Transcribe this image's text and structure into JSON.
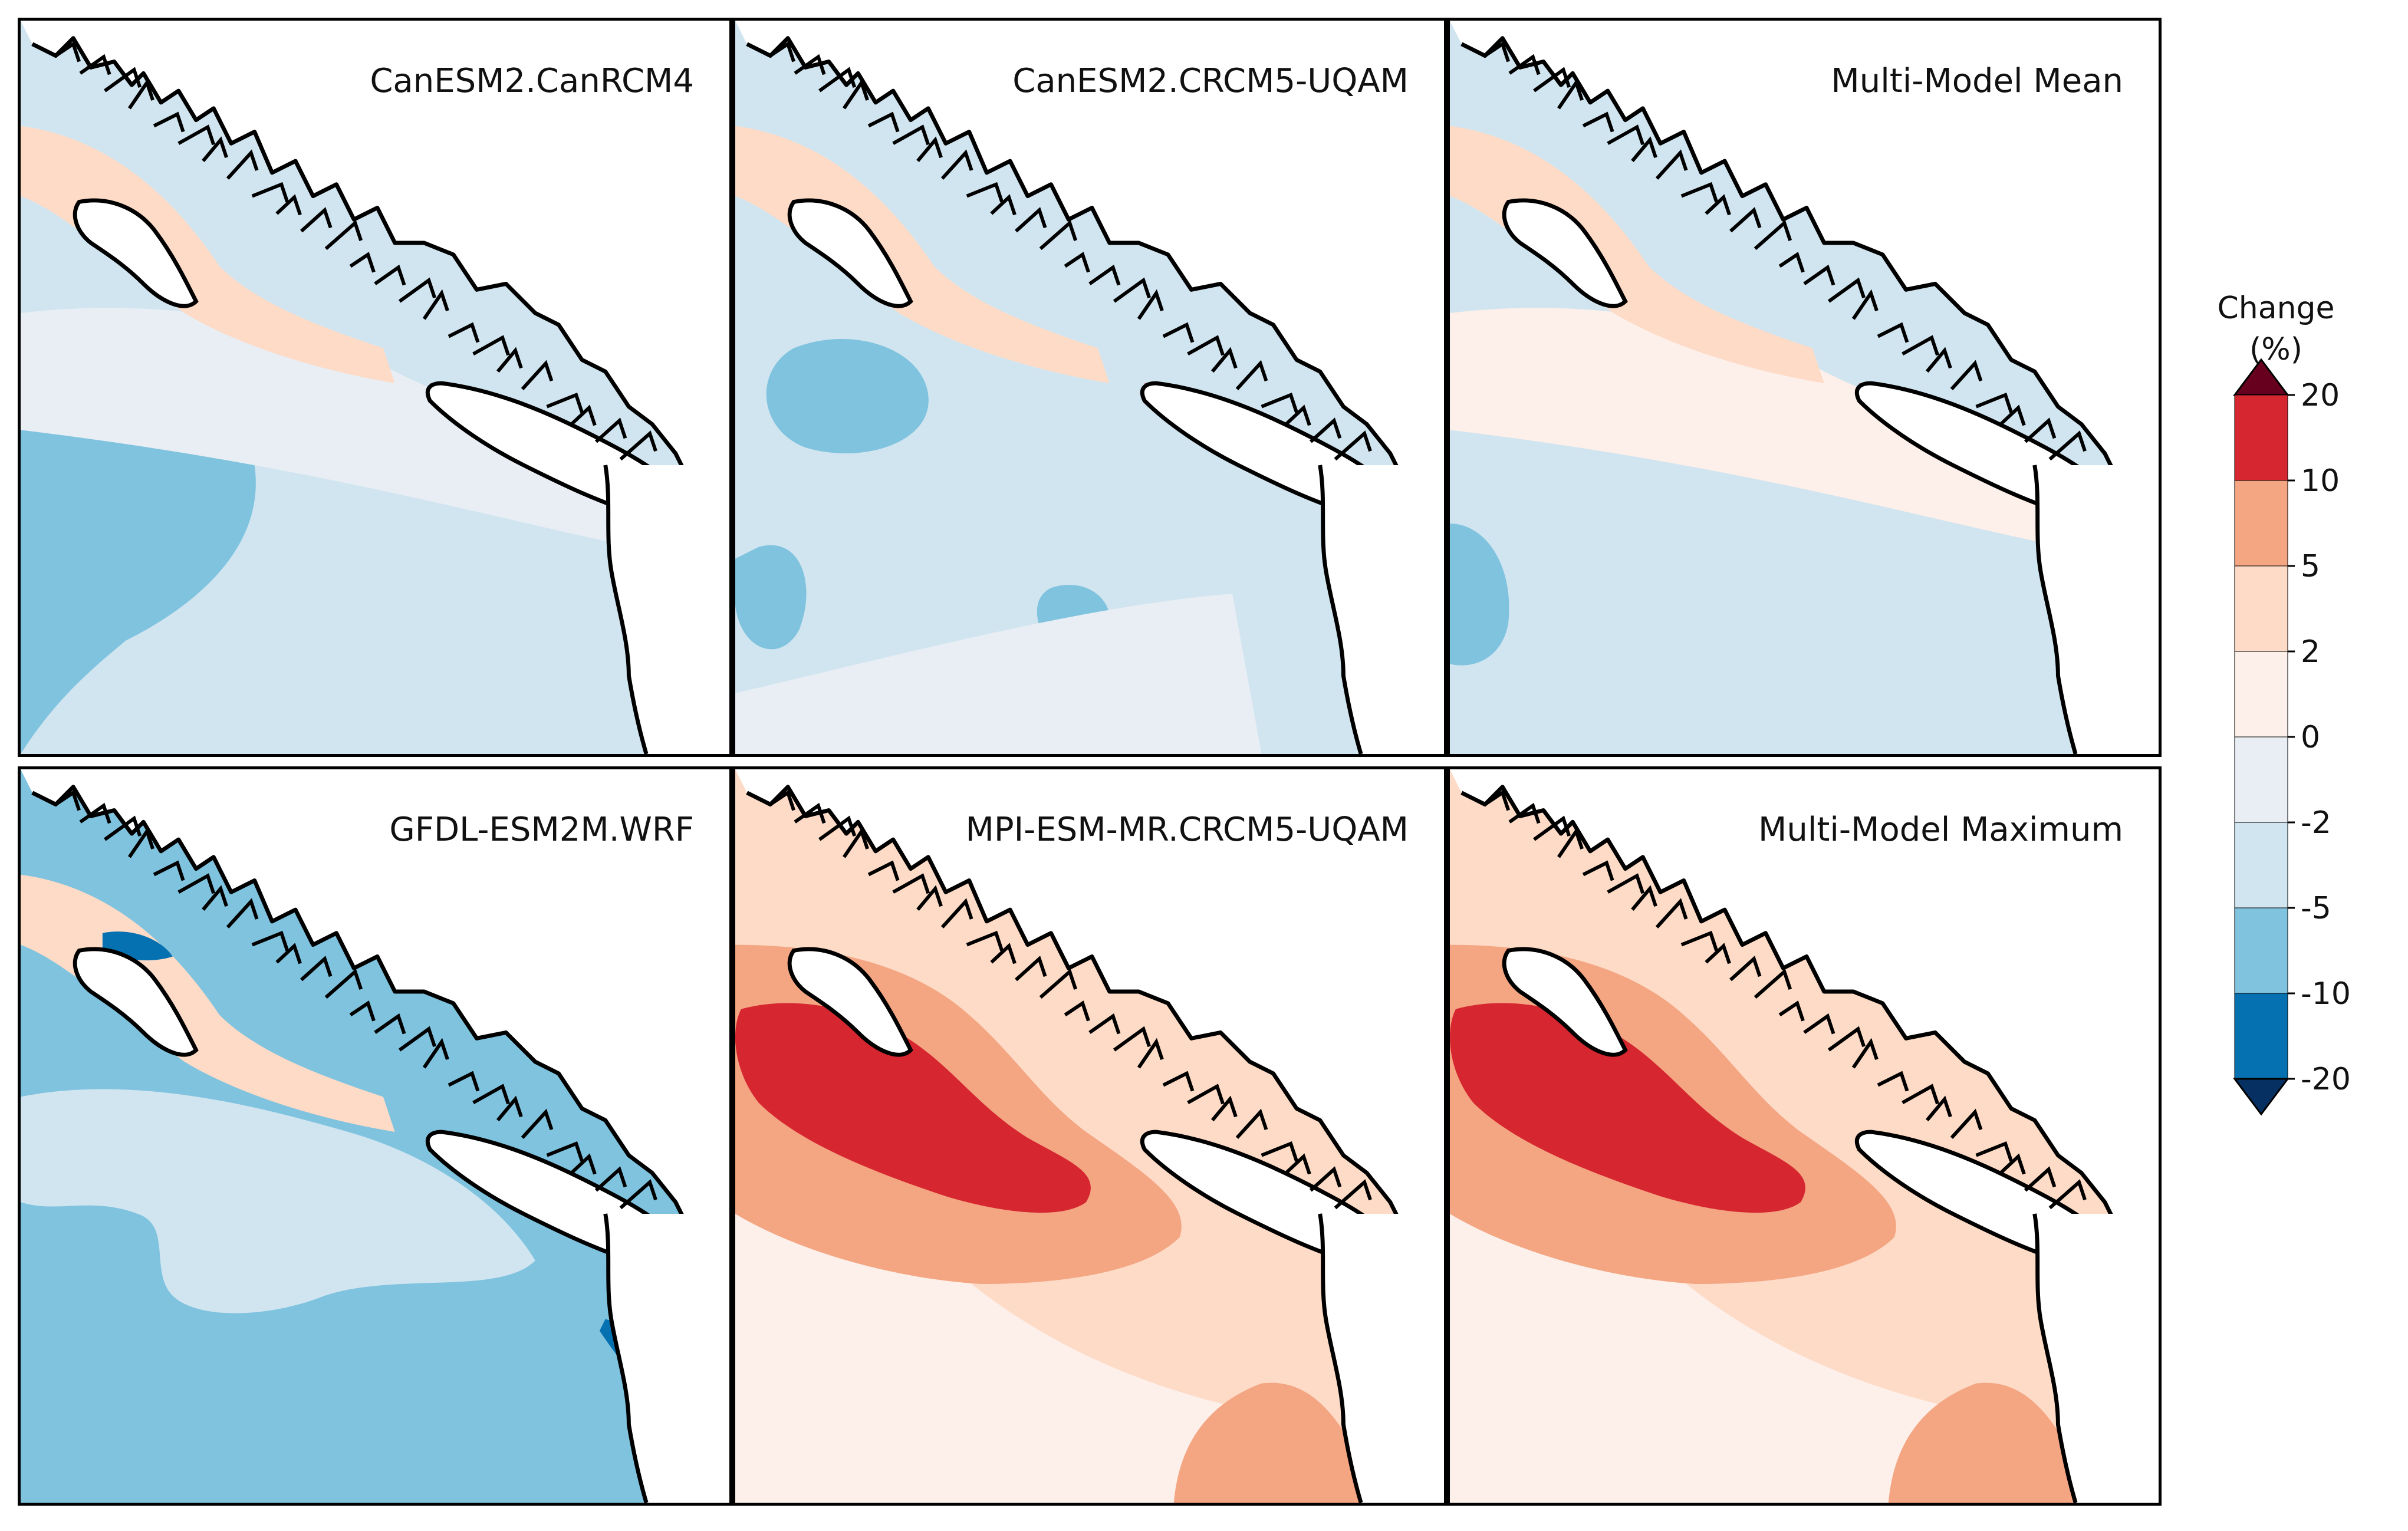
{
  "colorbar": {
    "title_line1": "Change",
    "title_line2": "(%)",
    "levels": [
      "20",
      "10",
      "5",
      "2",
      "0",
      "-2",
      "-5",
      "-10",
      "-20"
    ],
    "colors": [
      "#67001f",
      "#d6262f",
      "#f4a582",
      "#fddbc7",
      "#fdefe9",
      "#e8eef4",
      "#d1e5f0",
      "#7fc3df",
      "#0571b0",
      "#053061"
    ]
  },
  "panels": [
    {
      "id": "p1",
      "title": "CanESM2.CanRCM4",
      "base": "#d1e5f0",
      "blobs": [
        {
          "c": "#7fc3df",
          "shape": "west"
        },
        {
          "c": "#e8eef4",
          "shape": "band"
        },
        {
          "c": "#fddbc7",
          "shape": "north-strip"
        },
        {
          "c": "#d6262f",
          "shape": "strait"
        }
      ]
    },
    {
      "id": "p2",
      "title": "CanESM2.CRCM5-UQAM",
      "base": "#d1e5f0",
      "blobs": [
        {
          "c": "#7fc3df",
          "shape": "spots"
        },
        {
          "c": "#fddbc7",
          "shape": "north-strip"
        },
        {
          "c": "#e8eef4",
          "shape": "south-band"
        },
        {
          "c": "#d6262f",
          "shape": "strait"
        }
      ]
    },
    {
      "id": "p3",
      "title": "Multi-Model Mean",
      "base": "#d1e5f0",
      "blobs": [
        {
          "c": "#fdefe9",
          "shape": "band"
        },
        {
          "c": "#fddbc7",
          "shape": "north-strip"
        },
        {
          "c": "#7fc3df",
          "shape": "west-edge"
        },
        {
          "c": "#d6262f",
          "shape": "strait"
        }
      ]
    },
    {
      "id": "p4",
      "title": "GFDL-ESM2M.WRF",
      "base": "#7fc3df",
      "blobs": [
        {
          "c": "#d1e5f0",
          "shape": "upper"
        },
        {
          "c": "#fddbc7",
          "shape": "north-strip"
        },
        {
          "c": "#0571b0",
          "shape": "dark-spot"
        }
      ]
    },
    {
      "id": "p5",
      "title": "MPI-ESM-MR.CRCM5-UQAM",
      "base": "#fddbc7",
      "blobs": [
        {
          "c": "#fdefe9",
          "shape": "west-band"
        },
        {
          "c": "#f4a582",
          "shape": "big-ring"
        },
        {
          "c": "#d6262f",
          "shape": "big-core"
        },
        {
          "c": "#f4a582",
          "shape": "south-corner"
        }
      ]
    },
    {
      "id": "p6",
      "title": "Multi-Model Maximum",
      "base": "#fddbc7",
      "blobs": [
        {
          "c": "#fdefe9",
          "shape": "west-band"
        },
        {
          "c": "#f4a582",
          "shape": "big-ring"
        },
        {
          "c": "#d6262f",
          "shape": "big-core"
        },
        {
          "c": "#f4a582",
          "shape": "south-corner"
        }
      ]
    }
  ]
}
